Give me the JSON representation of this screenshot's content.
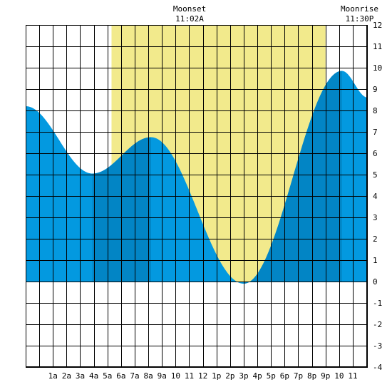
{
  "chart_data": {
    "type": "area",
    "title": "",
    "xlabel": "",
    "ylabel": "",
    "x_range_hours": [
      -1,
      24.1
    ],
    "ylim": [
      -4,
      12
    ],
    "x_tick_hours": [
      1,
      2,
      3,
      4,
      5,
      6,
      7,
      8,
      9,
      10,
      11,
      12,
      13,
      14,
      15,
      16,
      17,
      18,
      19,
      20,
      21,
      22,
      23
    ],
    "x_tick_labels": [
      "1a",
      "2a",
      "3a",
      "4a",
      "5a",
      "6a",
      "7a",
      "8a",
      "9a",
      "10",
      "11",
      "12",
      "1p",
      "2p",
      "3p",
      "4p",
      "5p",
      "6p",
      "7p",
      "8p",
      "9p",
      "10",
      "11"
    ],
    "y_ticks": [
      -4,
      -3,
      -2,
      -1,
      0,
      1,
      2,
      3,
      4,
      5,
      6,
      7,
      8,
      9,
      10,
      11,
      12
    ],
    "daylight_hours": [
      5.3,
      21.0
    ],
    "tide_extremes": [
      {
        "hour": -1.0,
        "height": 8.2
      },
      {
        "hour": 3.9,
        "height": 5.05
      },
      {
        "hour": 8.2,
        "height": 6.75
      },
      {
        "hour": 15.0,
        "height": -0.1
      },
      {
        "hour": 22.2,
        "height": 9.85
      },
      {
        "hour": 24.1,
        "height": 8.6
      }
    ],
    "shaded_bands": [
      [
        3.9,
        8.2
      ],
      [
        15.0,
        22.2
      ]
    ],
    "colors": {
      "tide": "#0399e0",
      "tide_dark": "#0285c5",
      "daylight": "#f2ea8c",
      "grid": "#000000",
      "background": "#ffffff"
    },
    "annotations": [
      {
        "label": "Moonset",
        "time": "11:02A",
        "hour": 11.03
      },
      {
        "label": "Moonrise",
        "time": "11:30P",
        "hour": 23.5
      }
    ]
  }
}
